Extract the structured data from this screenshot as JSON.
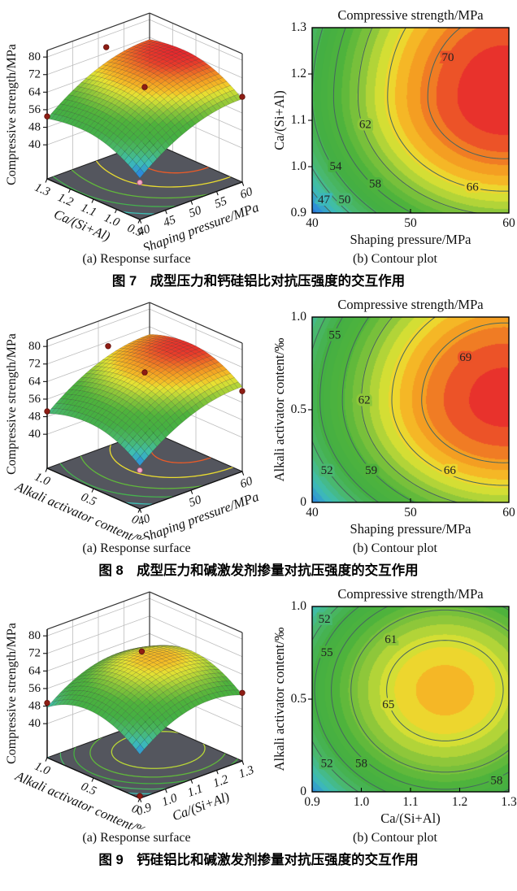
{
  "page": {
    "background": "#ffffff"
  },
  "chart_style": {
    "colormap": [
      [
        41,
        "#2940c8"
      ],
      [
        45,
        "#2e8fd8"
      ],
      [
        48,
        "#3fbfb4"
      ],
      [
        51.5,
        "#4ab76a"
      ],
      [
        55,
        "#44af43"
      ],
      [
        59,
        "#4fb33c"
      ],
      [
        62.5,
        "#8ec73a"
      ],
      [
        64.5,
        "#c8dc36"
      ],
      [
        65.8,
        "#e8e232"
      ],
      [
        67,
        "#f5c127"
      ],
      [
        68.8,
        "#f49d22"
      ],
      [
        70.4,
        "#ef7125"
      ],
      [
        71.8,
        "#ea3f2a"
      ],
      [
        73,
        "#e7282d"
      ]
    ],
    "band_step": 1.25,
    "floor_color": "#54565e",
    "mesh_line": "rgba(30,30,30,0.30)",
    "contour_line": "#46655f",
    "frame_color": "#000000",
    "grid_color": "#bdbdbd",
    "text_color": "#111111",
    "dot_color": "#8e1d14",
    "pink_dot_color": "#f2a9c4"
  },
  "chart_data": [
    {
      "caption_zh": "图 7　成型压力和钙硅铝比对抗压强度的交互作用",
      "model": {
        "cx": 59.5,
        "cy": 1.15,
        "peak": 73,
        "a": 0.05,
        "bu": 90,
        "bd": 170
      },
      "surface": {
        "type": "surface3d",
        "caption": "(a) Response surface",
        "z_label": "Compressive strength/MPa",
        "z_ticks": [
          40,
          48,
          56,
          64,
          72,
          80
        ],
        "right_axis": {
          "label": "Shaping pressure/MPa",
          "ticks": [
            "40",
            "45",
            "50",
            "55",
            "60"
          ],
          "range": [
            40,
            60
          ]
        },
        "left_axis": {
          "label": "Ca/(Si+Al)",
          "ticks": [
            "1.3",
            "1.2",
            "1.1",
            "1.0",
            "0.9"
          ],
          "range": [
            0.9,
            1.3
          ]
        },
        "floor_levels": [
          48,
          54,
          60,
          66,
          71
        ],
        "points": [
          [
            0,
            1,
            1
          ],
          [
            0.55,
            0.97,
            8
          ],
          [
            0.5,
            0.5,
            -1
          ],
          [
            1,
            0,
            1
          ]
        ],
        "tip": "pink"
      },
      "contour": {
        "type": "contour",
        "caption": "(b) Contour plot",
        "title": "Compressive strength/MPa",
        "x_label": "Shaping pressure/MPa",
        "x_range": [
          40,
          60
        ],
        "x_ticks": [
          "40",
          "50",
          "60"
        ],
        "y_label": "Ca/(Si+Al)",
        "y_range": [
          0.9,
          1.3
        ],
        "y_ticks": [
          "0.9",
          "1.0",
          "1.1",
          "1.2",
          "1.3"
        ],
        "levels": [
          47,
          50,
          54,
          58,
          62,
          66,
          70
        ],
        "labels": [
          {
            "t": "47",
            "x": 41.2,
            "y": 0.928
          },
          {
            "t": "50",
            "x": 43.3,
            "y": 0.928
          },
          {
            "t": "54",
            "x": 42.4,
            "y": 1.0
          },
          {
            "t": "58",
            "x": 46.4,
            "y": 0.962
          },
          {
            "t": "62",
            "x": 45.4,
            "y": 1.09
          },
          {
            "t": "66",
            "x": 56.3,
            "y": 0.955
          },
          {
            "t": "70",
            "x": 53.8,
            "y": 1.235
          }
        ]
      }
    },
    {
      "caption_zh": "图 8　成型压力和碱激发剂掺量对抗压强度的交互作用",
      "model": {
        "cx": 59.5,
        "cy": 0.55,
        "peak": 72.5,
        "a": 0.05,
        "bu": 20,
        "bd": 31
      },
      "surface": {
        "type": "surface3d",
        "caption": "(a) Response surface",
        "z_label": "Compressive strength/MPa",
        "z_ticks": [
          40,
          48,
          56,
          64,
          72,
          80
        ],
        "right_axis": {
          "label": "Shaping pressure/MPa",
          "ticks": [
            "40",
            "50",
            "60"
          ],
          "range": [
            40,
            60
          ]
        },
        "left_axis": {
          "label": "Alkali activator content/‰",
          "ticks": [
            "1.0",
            "0.5",
            "0"
          ],
          "range": [
            0,
            1
          ]
        },
        "floor_levels": [
          48,
          54,
          60,
          66,
          71
        ],
        "points": [
          [
            0,
            1,
            1
          ],
          [
            0.55,
            0.95,
            6
          ],
          [
            0.5,
            0.5,
            1
          ],
          [
            1,
            0,
            -2
          ]
        ],
        "tip": "pink"
      },
      "contour": {
        "type": "contour",
        "caption": "(b) Contour plot",
        "title": "Compressive strength/MPa",
        "x_label": "Shaping pressure/MPa",
        "x_range": [
          40,
          60
        ],
        "x_ticks": [
          "40",
          "50",
          "60"
        ],
        "y_label": "Alkali activator content/‰",
        "y_range": [
          0,
          1
        ],
        "y_ticks": [
          "0",
          "0.5",
          "1.0"
        ],
        "levels": [
          52,
          55,
          59,
          62,
          66,
          69
        ],
        "labels": [
          {
            "t": "55",
            "x": 42.3,
            "y": 0.9
          },
          {
            "t": "69",
            "x": 55.6,
            "y": 0.78
          },
          {
            "t": "62",
            "x": 45.3,
            "y": 0.55
          },
          {
            "t": "52",
            "x": 41.5,
            "y": 0.17
          },
          {
            "t": "59",
            "x": 46.0,
            "y": 0.17
          },
          {
            "t": "66",
            "x": 54.0,
            "y": 0.17
          }
        ]
      }
    },
    {
      "caption_zh": "图 9　钙硅铝比和碱激发剂掺量对抗压强度的交互作用",
      "model": {
        "cx": 1.17,
        "cy": 0.55,
        "peak": 67.5,
        "a": 178,
        "bu": 35,
        "bd": 33
      },
      "surface": {
        "type": "surface3d",
        "caption": "(a) Response surface",
        "z_label": "Compressive strength/MPa",
        "z_ticks": [
          40,
          48,
          56,
          64,
          72,
          80
        ],
        "right_axis": {
          "label": "Ca/(Si+Al)",
          "ticks": [
            "0.9",
            "1.0",
            "1.1",
            "1.2",
            "1.3"
          ],
          "range": [
            0.9,
            1.3
          ]
        },
        "left_axis": {
          "label": "Alkali activator content/‰",
          "ticks": [
            "1.0",
            "0.5",
            "0"
          ],
          "range": [
            0,
            1
          ]
        },
        "floor_levels": [
          48,
          52,
          56,
          60,
          64
        ],
        "points": [
          [
            0,
            1,
            2
          ],
          [
            0.58,
            0.62,
            3
          ],
          [
            1,
            0,
            1
          ]
        ],
        "tip": "floor"
      },
      "contour": {
        "type": "contour",
        "caption": "(b) Contour plot",
        "title": "Compressive strength/MPa",
        "x_label": "Ca/(Si+Al)",
        "x_range": [
          0.9,
          1.3
        ],
        "x_ticks": [
          "0.9",
          "1.0",
          "1.1",
          "1.2",
          "1.3"
        ],
        "y_label": "Alkali activator content/‰",
        "y_range": [
          0,
          1
        ],
        "y_ticks": [
          "0",
          "0.5",
          "1.0"
        ],
        "levels": [
          52,
          55,
          58,
          61,
          65
        ],
        "labels": [
          {
            "t": "52",
            "x": 0.925,
            "y": 0.93
          },
          {
            "t": "61",
            "x": 1.06,
            "y": 0.82
          },
          {
            "t": "55",
            "x": 0.93,
            "y": 0.75
          },
          {
            "t": "65",
            "x": 1.055,
            "y": 0.47
          },
          {
            "t": "52",
            "x": 0.93,
            "y": 0.15
          },
          {
            "t": "58",
            "x": 1.0,
            "y": 0.15
          },
          {
            "t": "58",
            "x": 1.275,
            "y": 0.06
          }
        ]
      }
    }
  ]
}
